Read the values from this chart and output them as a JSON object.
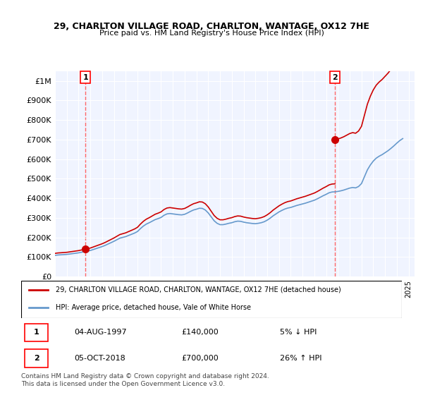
{
  "title": "29, CHARLTON VILLAGE ROAD, CHARLTON, WANTAGE, OX12 7HE",
  "subtitle": "Price paid vs. HM Land Registry's House Price Index (HPI)",
  "legend_line1": "29, CHARLTON VILLAGE ROAD, CHARLTON, WANTAGE, OX12 7HE (detached house)",
  "legend_line2": "HPI: Average price, detached house, Vale of White Horse",
  "annotation1_label": "1",
  "annotation1_date": "04-AUG-1997",
  "annotation1_price": "£140,000",
  "annotation1_hpi": "5% ↓ HPI",
  "annotation2_label": "2",
  "annotation2_date": "05-OCT-2018",
  "annotation2_price": "£700,000",
  "annotation2_hpi": "26% ↑ HPI",
  "footnote": "Contains HM Land Registry data © Crown copyright and database right 2024.\nThis data is licensed under the Open Government Licence v3.0.",
  "hpi_color": "#6699cc",
  "sale_color": "#cc0000",
  "vline_color": "#ff6666",
  "background_color": "#f0f4ff",
  "ylim": [
    0,
    1050000
  ],
  "yticks": [
    0,
    100000,
    200000,
    300000,
    400000,
    500000,
    600000,
    700000,
    800000,
    900000,
    1000000
  ],
  "ytick_labels": [
    "£0",
    "£100K",
    "£200K",
    "£300K",
    "£400K",
    "£500K",
    "£600K",
    "£700K",
    "£800K",
    "£900K",
    "£1M"
  ],
  "xlim_start": 1995.0,
  "xlim_end": 2025.5,
  "sale1_x": 1997.58,
  "sale1_y": 140000,
  "sale2_x": 2018.75,
  "sale2_y": 700000,
  "hpi_x": [
    1995,
    1995.25,
    1995.5,
    1995.75,
    1996,
    1996.25,
    1996.5,
    1996.75,
    1997,
    1997.25,
    1997.5,
    1997.75,
    1998,
    1998.25,
    1998.5,
    1998.75,
    1999,
    1999.25,
    1999.5,
    1999.75,
    2000,
    2000.25,
    2000.5,
    2000.75,
    2001,
    2001.25,
    2001.5,
    2001.75,
    2002,
    2002.25,
    2002.5,
    2002.75,
    2003,
    2003.25,
    2003.5,
    2003.75,
    2004,
    2004.25,
    2004.5,
    2004.75,
    2005,
    2005.25,
    2005.5,
    2005.75,
    2006,
    2006.25,
    2006.5,
    2006.75,
    2007,
    2007.25,
    2007.5,
    2007.75,
    2008,
    2008.25,
    2008.5,
    2008.75,
    2009,
    2009.25,
    2009.5,
    2009.75,
    2010,
    2010.25,
    2010.5,
    2010.75,
    2011,
    2011.25,
    2011.5,
    2011.75,
    2012,
    2012.25,
    2012.5,
    2012.75,
    2013,
    2013.25,
    2013.5,
    2013.75,
    2014,
    2014.25,
    2014.5,
    2014.75,
    2015,
    2015.25,
    2015.5,
    2015.75,
    2016,
    2016.25,
    2016.5,
    2016.75,
    2017,
    2017.25,
    2017.5,
    2017.75,
    2018,
    2018.25,
    2018.5,
    2018.75,
    2019,
    2019.25,
    2019.5,
    2019.75,
    2020,
    2020.25,
    2020.5,
    2020.75,
    2021,
    2021.25,
    2021.5,
    2021.75,
    2022,
    2022.25,
    2022.5,
    2022.75,
    2023,
    2023.25,
    2023.5,
    2023.75,
    2024,
    2024.25,
    2024.5
  ],
  "hpi_y": [
    108000,
    110000,
    111000,
    112000,
    113000,
    115000,
    117000,
    119000,
    121000,
    124000,
    127000,
    130000,
    133000,
    138000,
    143000,
    148000,
    153000,
    159000,
    166000,
    173000,
    180000,
    188000,
    196000,
    200000,
    204000,
    210000,
    216000,
    222000,
    230000,
    245000,
    258000,
    268000,
    275000,
    283000,
    291000,
    296000,
    302000,
    313000,
    320000,
    322000,
    320000,
    318000,
    316000,
    315000,
    318000,
    325000,
    333000,
    340000,
    344000,
    349000,
    348000,
    340000,
    325000,
    305000,
    285000,
    272000,
    265000,
    265000,
    268000,
    272000,
    275000,
    280000,
    283000,
    282000,
    278000,
    275000,
    273000,
    271000,
    270000,
    272000,
    275000,
    280000,
    288000,
    298000,
    310000,
    320000,
    330000,
    338000,
    345000,
    350000,
    353000,
    358000,
    363000,
    367000,
    371000,
    375000,
    380000,
    385000,
    390000,
    397000,
    405000,
    413000,
    420000,
    428000,
    432000,
    433000,
    435000,
    438000,
    442000,
    447000,
    452000,
    455000,
    453000,
    460000,
    475000,
    510000,
    545000,
    570000,
    590000,
    605000,
    615000,
    623000,
    633000,
    643000,
    655000,
    668000,
    682000,
    695000,
    705000
  ]
}
